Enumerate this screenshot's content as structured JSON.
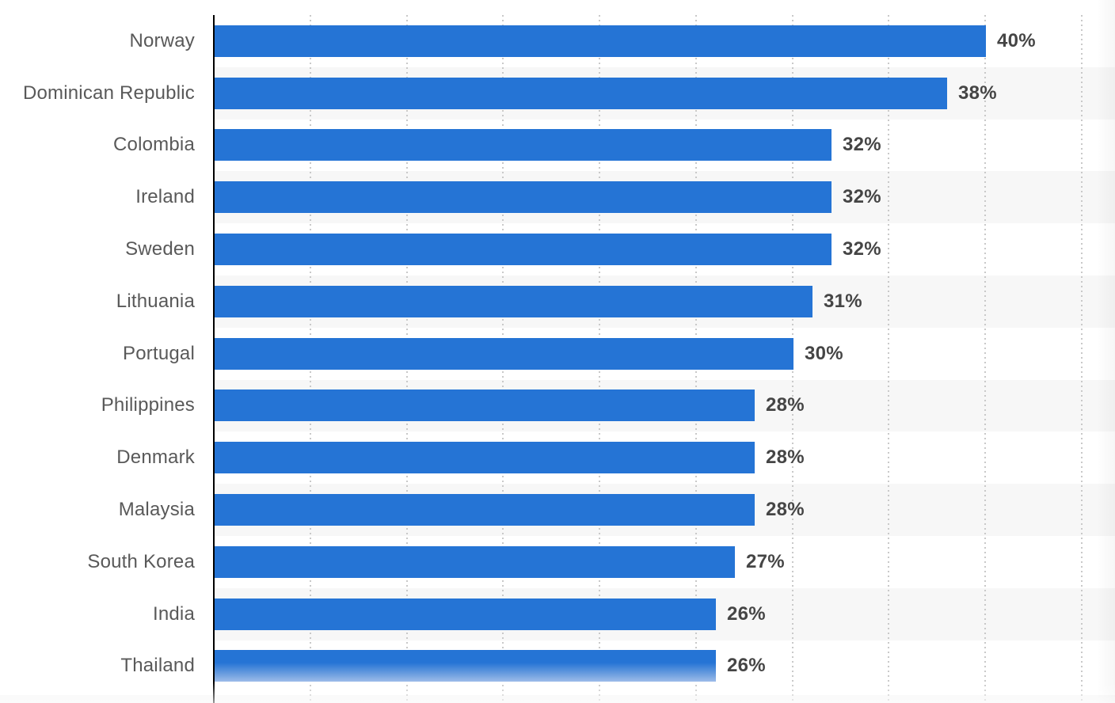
{
  "chart_data": {
    "type": "bar",
    "orientation": "horizontal",
    "title": "",
    "xlabel": "",
    "ylabel": "",
    "categories": [
      "Norway",
      "Dominican Republic",
      "Colombia",
      "Ireland",
      "Sweden",
      "Lithuania",
      "Portugal",
      "Philippines",
      "Denmark",
      "Malaysia",
      "South Korea",
      "India",
      "Thailand"
    ],
    "values": [
      40,
      38,
      32,
      32,
      32,
      31,
      30,
      28,
      28,
      28,
      27,
      26,
      26
    ],
    "value_labels": [
      "40%",
      "38%",
      "32%",
      "32%",
      "32%",
      "31%",
      "30%",
      "28%",
      "28%",
      "28%",
      "27%",
      "26%",
      "26%"
    ],
    "unit": "%",
    "xlim": [
      0,
      46.7
    ],
    "gridlines_pct": [
      5,
      10,
      15,
      20,
      25,
      30,
      35,
      40,
      45
    ],
    "grid": "dotted-vertical",
    "legend": "none",
    "row_striping": "alternate-light-gray",
    "colors": {
      "bar": "#2574d5",
      "bar_fade_bottom": "#9dbce9",
      "row_stripe": "#f7f7f7",
      "gridline": "#c9c9c9",
      "axis": "#000000",
      "category_label": "#595959",
      "value_label": "#454545",
      "background": "#ffffff"
    }
  }
}
